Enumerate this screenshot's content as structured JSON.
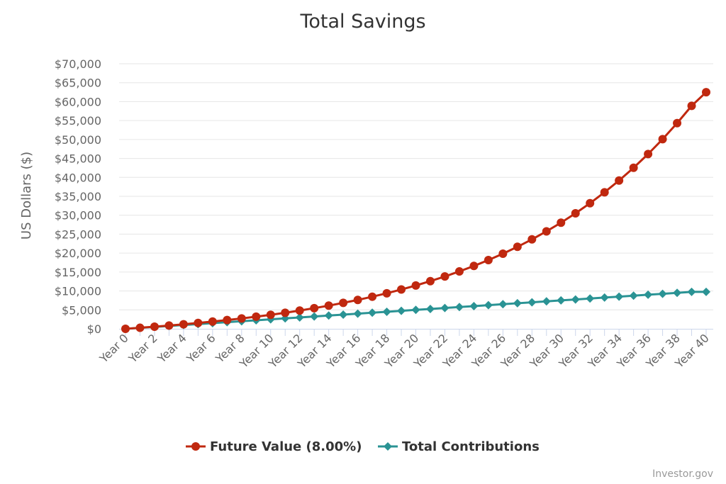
{
  "chart_data": {
    "type": "line",
    "title": "Total Savings",
    "xlabel": "",
    "ylabel": "US Dollars ($)",
    "ylim": [
      0,
      70000
    ],
    "y_ticks": [
      "$0",
      "$5,000",
      "$10,000",
      "$15,000",
      "$20,000",
      "$25,000",
      "$30,000",
      "$35,000",
      "$40,000",
      "$45,000",
      "$50,000",
      "$55,000",
      "$60,000",
      "$65,000",
      "$70,000"
    ],
    "x_tick_labels": [
      "Year 0",
      "Year 2",
      "Year 4",
      "Year 6",
      "Year 8",
      "Year 10",
      "Year 12",
      "Year 14",
      "Year 16",
      "Year 18",
      "Year 20",
      "Year 22",
      "Year 24",
      "Year 26",
      "Year 28",
      "Year 30",
      "Year 32",
      "Year 34",
      "Year 36",
      "Year 38",
      "Year 40"
    ],
    "x": [
      0,
      1,
      2,
      3,
      4,
      5,
      6,
      7,
      8,
      9,
      10,
      11,
      12,
      13,
      14,
      15,
      16,
      17,
      18,
      19,
      20,
      21,
      22,
      23,
      24,
      25,
      26,
      27,
      28,
      29,
      30,
      31,
      32,
      33,
      34,
      35,
      36,
      37,
      38,
      39,
      40
    ],
    "grid": true,
    "legend_position": "bottom-center",
    "series": [
      {
        "name": "Future Value (8.00%)",
        "color": "#c0280f",
        "marker": "circle",
        "values": [
          0,
          270,
          560,
          860,
          1190,
          1540,
          1910,
          2310,
          2740,
          3200,
          3700,
          4240,
          4820,
          5450,
          6120,
          6850,
          7630,
          8480,
          9390,
          10380,
          11440,
          12590,
          13820,
          15160,
          16600,
          18160,
          19840,
          21660,
          23620,
          25740,
          28030,
          30500,
          33170,
          36060,
          39170,
          42530,
          46160,
          50080,
          54320,
          58890,
          62500
        ]
      },
      {
        "name": "Total Contributions",
        "color": "#2a9394",
        "marker": "diamond",
        "values": [
          0,
          250,
          500,
          750,
          1000,
          1250,
          1500,
          1750,
          2000,
          2250,
          2500,
          2750,
          3000,
          3250,
          3500,
          3750,
          4000,
          4250,
          4500,
          4750,
          5000,
          5250,
          5500,
          5750,
          6000,
          6250,
          6500,
          6750,
          7000,
          7250,
          7500,
          7750,
          8000,
          8250,
          8500,
          8750,
          9000,
          9250,
          9500,
          9750,
          9750
        ]
      }
    ]
  },
  "credit": "Investor.gov"
}
